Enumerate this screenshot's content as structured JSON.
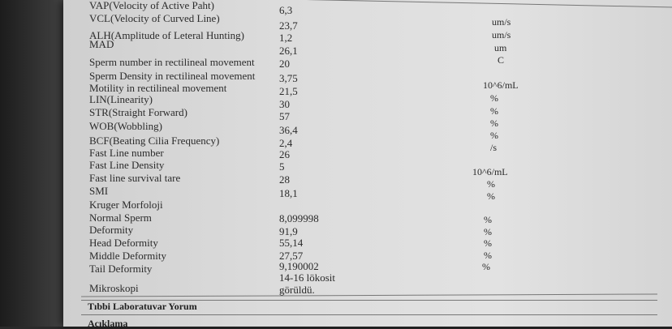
{
  "rows": [
    {
      "label": "VAP(Velocity of Active Paht)",
      "value": "6,3"
    },
    {
      "label": "VCL(Velocity of Curved Line)",
      "value": "23,7"
    },
    {
      "label": "ALH(Amplitude of Leteral Hunting)",
      "value": "1,2"
    },
    {
      "label": "MAD",
      "value": "26,1"
    },
    {
      "label": "Sperm number in rectilineal movement",
      "value": "20"
    },
    {
      "label": "Sperm Density in rectilineal movement",
      "value": "3,75"
    },
    {
      "label": "Motility in rectilineal movement",
      "value": "21,5"
    },
    {
      "label": "LIN(Linearity)",
      "value": "30"
    },
    {
      "label": "STR(Straight Forward)",
      "value": "57"
    },
    {
      "label": "WOB(Wobbling)",
      "value": "36,4"
    },
    {
      "label": "BCF(Beating Cilia Frequency)",
      "value": "2,4"
    },
    {
      "label": "Fast Line number",
      "value": "26"
    },
    {
      "label": "Fast Line Density",
      "value": "5"
    },
    {
      "label": "Fast line survival tare",
      "value": "28"
    },
    {
      "label": "SMI",
      "value": "18,1"
    },
    {
      "label": "Kruger Morfoloji",
      "value": ""
    },
    {
      "label": "Normal Sperm",
      "value": "8,099998"
    },
    {
      "label": "Deformity",
      "value": "91,9"
    },
    {
      "label": "Head Deformity",
      "value": "55,14"
    },
    {
      "label": "Middle Deformity",
      "value": "27,57"
    },
    {
      "label": "Tail Deformity",
      "value": "9,190002"
    },
    {
      "label": "Mikroskopi",
      "value": "14-16 lökosit",
      "value2": "görüldü."
    }
  ],
  "units": [
    "um/s",
    "um/s",
    "um",
    "C",
    "10^6/mL",
    "%",
    "%",
    "%",
    "%",
    "/s",
    "10^6/mL",
    "%",
    "%",
    "%",
    "%",
    "%",
    "%",
    "%"
  ],
  "sections": {
    "comment": "Tıbbi Laboratuvar Yorum",
    "explanation": "Açıklama"
  }
}
